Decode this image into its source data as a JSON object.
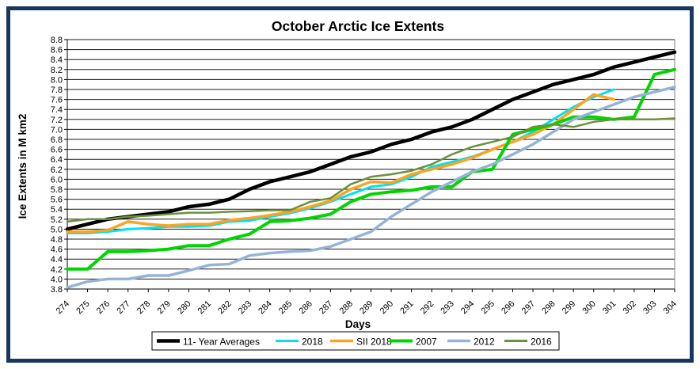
{
  "window": {
    "background": "#FFFFFF",
    "border_color": "#17375E"
  },
  "chart_data": {
    "type": "line",
    "title": "October Arctic Ice Extents",
    "xlabel": "Days",
    "ylabel": "Ice Extents in M km2",
    "ylim": [
      3.8,
      8.8
    ],
    "ytick_step": 0.2,
    "ytick_labels": [
      "3.8",
      "4.0",
      "4.2",
      "4.4",
      "4.6",
      "4.8",
      "5.0",
      "5.2",
      "5.4",
      "5.6",
      "5.8",
      "6.0",
      "6.2",
      "6.4",
      "6.6",
      "6.8",
      "7.0",
      "7.2",
      "7.4",
      "7.6",
      "7.8",
      "8.0",
      "8.2",
      "8.4",
      "8.6",
      "8.8"
    ],
    "grid": true,
    "legend_position": "bottom",
    "categories": [
      274,
      275,
      276,
      277,
      278,
      279,
      280,
      281,
      282,
      283,
      284,
      285,
      286,
      287,
      288,
      289,
      290,
      291,
      292,
      293,
      294,
      295,
      296,
      297,
      298,
      299,
      300,
      301,
      302,
      303,
      304
    ],
    "series": [
      {
        "name": "11- Year Averages",
        "color": "#000000",
        "width": 4.5,
        "values": [
          5.0,
          5.1,
          5.2,
          5.25,
          5.3,
          5.35,
          5.45,
          5.5,
          5.6,
          5.8,
          5.95,
          6.05,
          6.15,
          6.3,
          6.45,
          6.55,
          6.7,
          6.8,
          6.95,
          7.05,
          7.2,
          7.4,
          7.6,
          7.75,
          7.9,
          8.0,
          8.1,
          8.25,
          8.35,
          8.45,
          8.55
        ]
      },
      {
        "name": "2018",
        "color": "#00E1F2",
        "width": 3,
        "values": [
          4.92,
          4.92,
          4.95,
          5.0,
          5.02,
          5.05,
          5.05,
          5.07,
          5.15,
          5.17,
          5.25,
          5.32,
          5.42,
          5.55,
          5.7,
          5.85,
          5.9,
          6.05,
          6.25,
          6.35,
          6.45,
          6.6,
          6.75,
          6.95,
          7.2,
          7.45,
          7.65,
          7.8
        ]
      },
      {
        "name": "SII 2018",
        "color": "#FFA21E",
        "width": 3.5,
        "values": [
          4.95,
          4.95,
          4.98,
          5.15,
          5.1,
          5.07,
          5.1,
          5.1,
          5.18,
          5.22,
          5.28,
          5.35,
          5.45,
          5.57,
          5.8,
          5.95,
          5.93,
          6.1,
          6.2,
          6.3,
          6.43,
          6.6,
          6.75,
          6.9,
          7.1,
          7.4,
          7.7,
          7.6
        ]
      },
      {
        "name": "2007",
        "color": "#00D500",
        "width": 4,
        "values": [
          4.2,
          4.2,
          4.55,
          4.55,
          4.57,
          4.6,
          4.67,
          4.67,
          4.8,
          4.9,
          5.15,
          5.17,
          5.22,
          5.3,
          5.55,
          5.7,
          5.75,
          5.78,
          5.85,
          5.85,
          6.15,
          6.2,
          6.9,
          7.0,
          7.1,
          7.25,
          7.25,
          7.2,
          7.25,
          8.1,
          8.2
        ]
      },
      {
        "name": "2012",
        "color": "#95B3D7",
        "width": 3.5,
        "values": [
          3.83,
          3.95,
          4.0,
          4.0,
          4.07,
          4.07,
          4.17,
          4.28,
          4.3,
          4.47,
          4.52,
          4.55,
          4.57,
          4.65,
          4.8,
          4.95,
          5.25,
          5.5,
          5.75,
          5.95,
          6.15,
          6.3,
          6.5,
          6.7,
          6.95,
          7.2,
          7.35,
          7.5,
          7.65,
          7.75,
          7.85
        ]
      },
      {
        "name": "2016",
        "color": "#69923A",
        "width": 2.5,
        "values": [
          5.15,
          5.2,
          5.2,
          5.25,
          5.27,
          5.3,
          5.33,
          5.33,
          5.35,
          5.36,
          5.38,
          5.38,
          5.55,
          5.62,
          5.9,
          6.05,
          6.1,
          6.17,
          6.3,
          6.5,
          6.65,
          6.75,
          6.85,
          7.05,
          7.1,
          7.05,
          7.15,
          7.2,
          7.2,
          7.2,
          7.22
        ]
      }
    ]
  }
}
